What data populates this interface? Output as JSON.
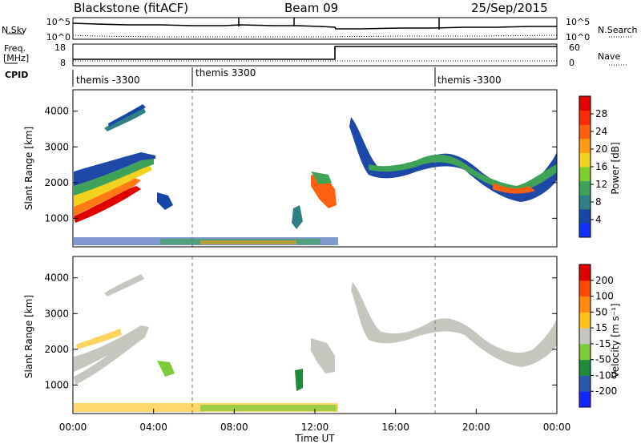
{
  "header": {
    "title": "Blackstone (fitACF)",
    "beam": "Beam 09",
    "date": "25/Sep/2015"
  },
  "top_panels": {
    "nsky_label": "N.Sky",
    "nsearch_label": "N.Search",
    "noise_ticks": [
      "10^5",
      "10^0"
    ],
    "freq_label": "Freq.",
    "freq_unit": "[MHz]",
    "freq_ticks": [
      "18",
      "8"
    ],
    "nave_label": "Nave",
    "nave_ticks": [
      "60",
      "0"
    ],
    "cpid_label": "CPID",
    "cpid_segments": [
      {
        "label": "themis -3300",
        "start": "00:00",
        "end": "06:00"
      },
      {
        "label": "themis 3300",
        "start": "06:00",
        "end": "18:00"
      },
      {
        "label": "themis -3300",
        "start": "18:00",
        "end": "24:00"
      }
    ]
  },
  "chart_data": [
    {
      "type": "heatmap",
      "name": "power",
      "ylabel": "Slant Range [km]",
      "yticks": [
        "1000",
        "2000",
        "3000",
        "4000"
      ],
      "ylim": [
        200,
        4600
      ],
      "xlim": [
        0,
        24
      ],
      "colorbar_label": "Power [dB]",
      "colorbar_ticks": [
        "28",
        "24",
        "20",
        "16",
        "12",
        "8",
        "4"
      ],
      "colorbar_colors": [
        "#1030ff",
        "#1646a8",
        "#2e7f86",
        "#3ea257",
        "#7ccf2a",
        "#f2d21e",
        "#ff9a12",
        "#ff6010",
        "#ff2a08",
        "#e40000"
      ],
      "dashed_lines_hours": [
        6,
        18
      ]
    },
    {
      "type": "heatmap",
      "name": "velocity",
      "ylabel": "Slant Range [km]",
      "yticks": [
        "1000",
        "2000",
        "3000",
        "4000"
      ],
      "ylim": [
        200,
        4600
      ],
      "xlim": [
        0,
        24
      ],
      "xticks": [
        "00:00",
        "04:00",
        "08:00",
        "12:00",
        "16:00",
        "20:00",
        "00:00"
      ],
      "xlabel": "Time UT",
      "colorbar_label": "Velocity [m s⁻¹]",
      "colorbar_ticks": [
        "200",
        "100",
        "50",
        "15",
        "-15",
        "-50",
        "-100",
        "-200"
      ],
      "colorbar_colors": [
        "#1525ff",
        "#2a56b0",
        "#1f8a3a",
        "#7ccc3a",
        "#c6c6be",
        "#ffc21a",
        "#ff8a0d",
        "#ff4a0a",
        "#e00000"
      ],
      "dashed_lines_hours": [
        6,
        18
      ]
    }
  ]
}
